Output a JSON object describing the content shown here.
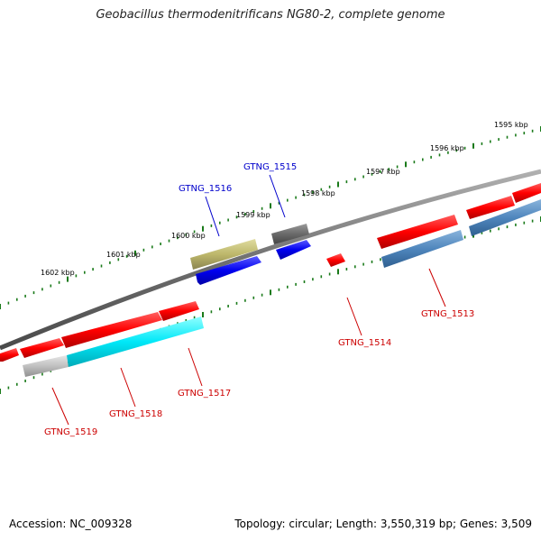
{
  "title": "Geobacillus thermodenitrificans NG80-2, complete genome",
  "footer": {
    "accession": "Accession: NC_009328",
    "topology": "Topology: circular; Length: 3,550,319 bp; Genes: 3,509"
  },
  "colors": {
    "forward_gene": "#ff0000",
    "reverse_gene": "#00e6ff",
    "backbone": "#808080",
    "tick": "#1a7a1a",
    "label_forward": "#cc0000",
    "label_reverse": "#0000cc"
  },
  "kbp_labels": [
    "1595 kbp",
    "1596 kbp",
    "1597 kbp",
    "1598 kbp",
    "1599 kbp",
    "1600 kbp",
    "1601 kbp",
    "1602 kbp"
  ],
  "gene_labels": [
    {
      "id": "GTNG_1515",
      "strand": "reverse"
    },
    {
      "id": "GTNG_1516",
      "strand": "reverse"
    },
    {
      "id": "GTNG_1513",
      "strand": "forward"
    },
    {
      "id": "GTNG_1514",
      "strand": "forward"
    },
    {
      "id": "GTNG_1517",
      "strand": "forward"
    },
    {
      "id": "GTNG_1518",
      "strand": "forward"
    },
    {
      "id": "GTNG_1519",
      "strand": "forward"
    }
  ]
}
